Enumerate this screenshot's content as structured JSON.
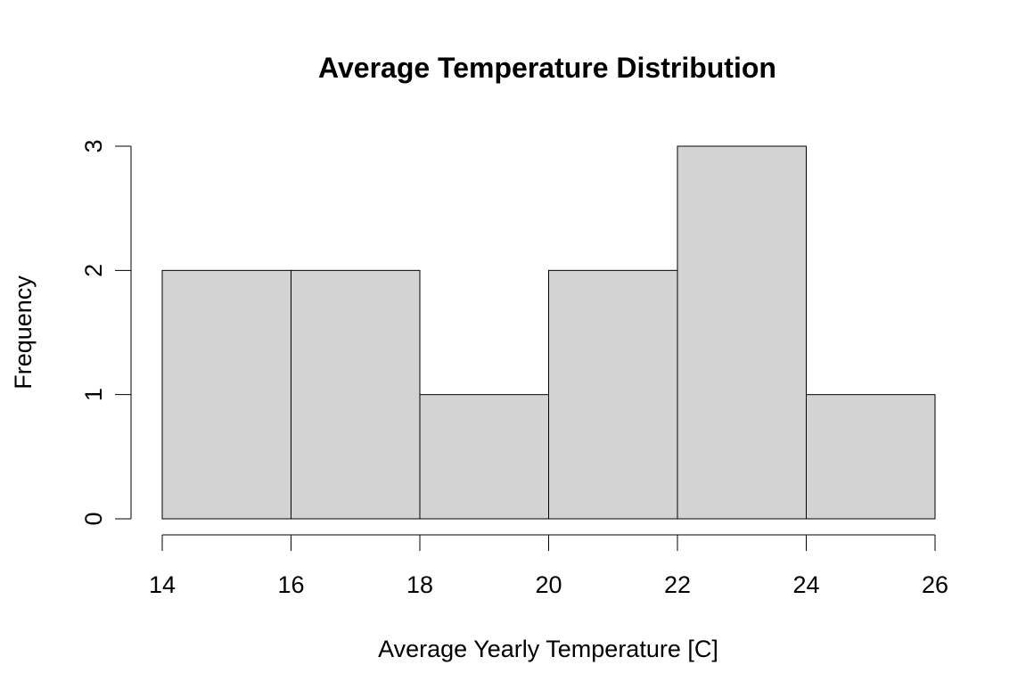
{
  "chart_data": {
    "type": "bar",
    "title": "Average Temperature Distribution",
    "xlabel": "Average Yearly Temperature [C]",
    "ylabel": "Frequency",
    "bins": [
      {
        "from": 14,
        "to": 16,
        "count": 2
      },
      {
        "from": 16,
        "to": 18,
        "count": 2
      },
      {
        "from": 18,
        "to": 20,
        "count": 1
      },
      {
        "from": 20,
        "to": 22,
        "count": 2
      },
      {
        "from": 22,
        "to": 24,
        "count": 3
      },
      {
        "from": 24,
        "to": 26,
        "count": 1
      }
    ],
    "xlim": [
      14,
      26
    ],
    "ylim": [
      0,
      3
    ],
    "x_ticks": [
      "14",
      "16",
      "18",
      "20",
      "22",
      "24",
      "26"
    ],
    "y_ticks": [
      "0",
      "1",
      "2",
      "3"
    ],
    "grid": false,
    "bar_color": "#d3d3d3",
    "edge_color": "#000000"
  }
}
